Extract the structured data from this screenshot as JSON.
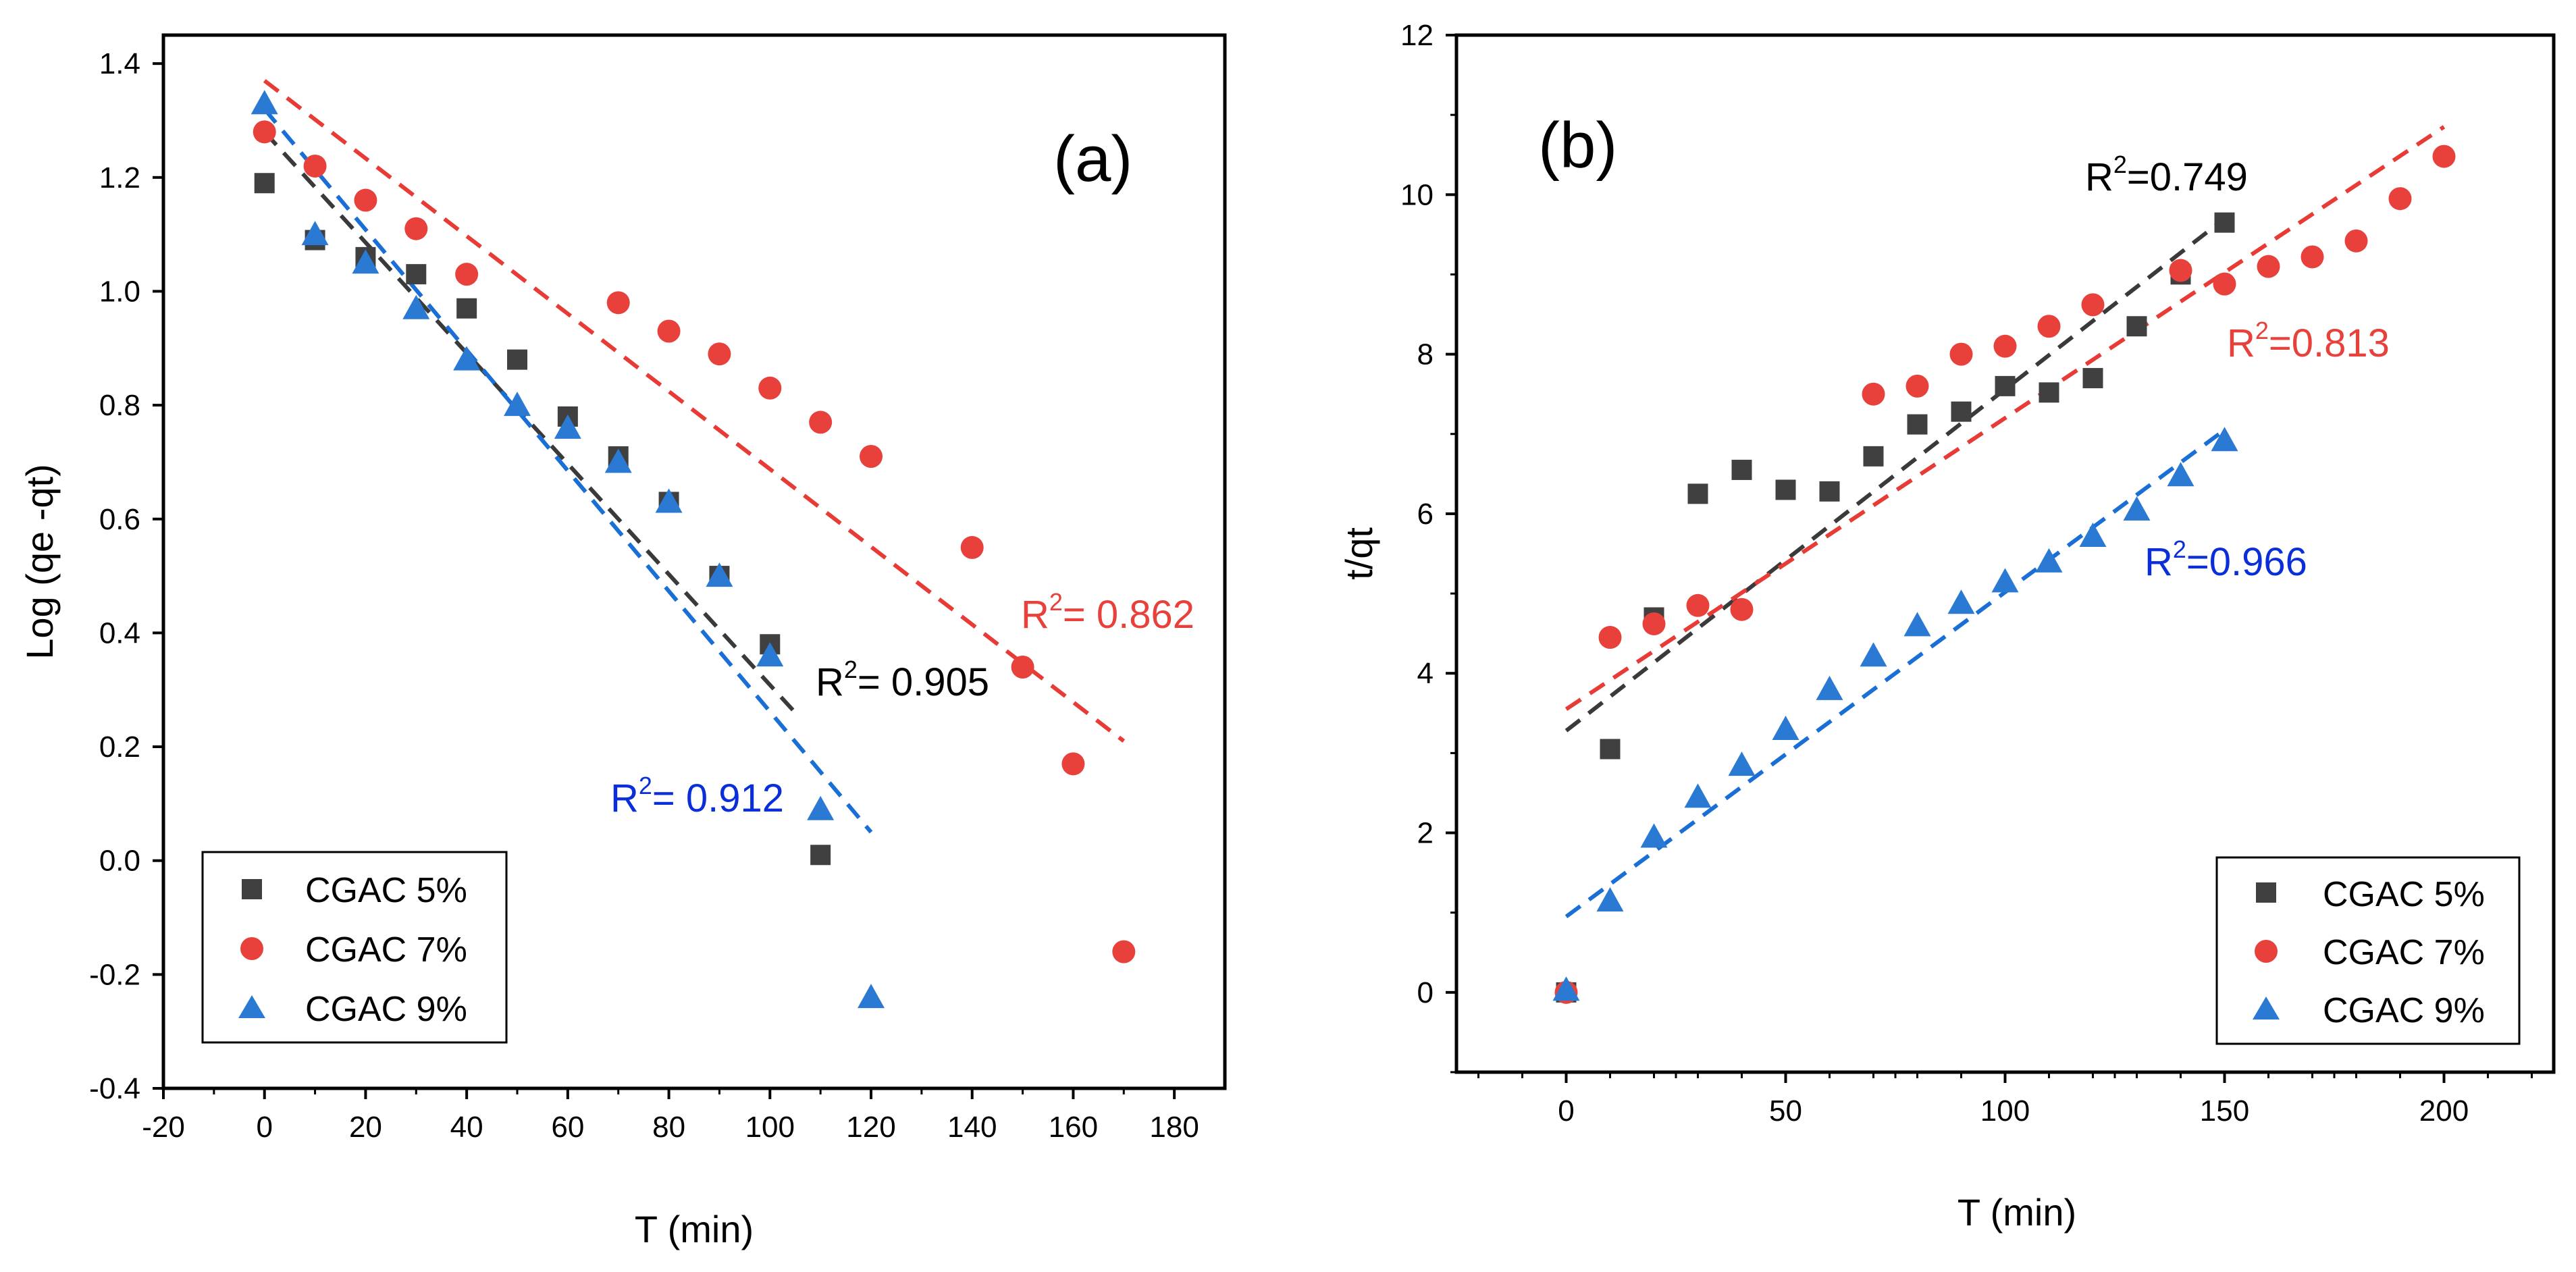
{
  "chart_data": [
    {
      "type": "scatter",
      "panel_label": "(a)",
      "xlabel": "T (min)",
      "ylabel": "Log (qe -qt)",
      "xlim": [
        -20,
        190
      ],
      "ylim": [
        -0.4,
        1.45
      ],
      "xticks": [
        -20,
        0,
        20,
        40,
        60,
        80,
        100,
        120,
        140,
        160,
        180
      ],
      "xtick_labels": [
        "-20",
        "0",
        "20",
        "40",
        "60",
        "80",
        "100",
        "120",
        "140",
        "160",
        "180"
      ],
      "yticks": [
        -0.4,
        -0.2,
        0.0,
        0.2,
        0.4,
        0.6,
        0.8,
        1.0,
        1.2,
        1.4
      ],
      "ytick_labels": [
        "-0.4",
        "-0.2",
        "0.0",
        "0.2",
        "0.4",
        "0.6",
        "0.8",
        "1.0",
        "1.2",
        "1.4"
      ],
      "legend_position": "bottom-left",
      "series": [
        {
          "name": "CGAC 5%",
          "marker": "square",
          "color": "#404040",
          "x": [
            0,
            10,
            20,
            30,
            40,
            50,
            60,
            70,
            80,
            90,
            100,
            110
          ],
          "y": [
            1.19,
            1.09,
            1.06,
            1.03,
            0.97,
            0.88,
            0.78,
            0.71,
            0.63,
            0.5,
            0.38,
            0.01
          ],
          "fit": {
            "x1": 0,
            "y1": 1.28,
            "x2": 105,
            "y2": 0.26,
            "r2_label": "R",
            "r2_value": "= 0.905"
          }
        },
        {
          "name": "CGAC 7%",
          "marker": "circle",
          "color": "#e8403a",
          "x": [
            0,
            10,
            20,
            30,
            40,
            70,
            80,
            90,
            100,
            110,
            120,
            140,
            150,
            160,
            170
          ],
          "y": [
            1.28,
            1.22,
            1.16,
            1.11,
            1.03,
            0.98,
            0.93,
            0.89,
            0.83,
            0.77,
            0.71,
            0.55,
            0.34,
            0.17,
            -0.16
          ],
          "fit": {
            "x1": 0,
            "y1": 1.37,
            "x2": 170,
            "y2": 0.21,
            "r2_label": "R",
            "r2_value": "= 0.862"
          }
        },
        {
          "name": "CGAC 9%",
          "marker": "triangle",
          "color": "#2a7ad4",
          "x": [
            0,
            10,
            20,
            30,
            40,
            50,
            60,
            70,
            80,
            90,
            100,
            110,
            120
          ],
          "y": [
            1.33,
            1.1,
            1.05,
            0.97,
            0.88,
            0.8,
            0.76,
            0.7,
            0.63,
            0.5,
            0.36,
            0.09,
            -0.24
          ],
          "fit": {
            "x1": 0,
            "y1": 1.32,
            "x2": 120,
            "y2": 0.05,
            "r2_label": "R",
            "r2_value": "= 0.912"
          }
        }
      ]
    },
    {
      "type": "scatter",
      "panel_label": "(b)",
      "xlabel": "T (min)",
      "ylabel": "t/qt",
      "xlim": [
        -25,
        225
      ],
      "ylim": [
        -1,
        12
      ],
      "xticks": [
        0,
        50,
        100,
        150,
        200
      ],
      "xtick_labels": [
        "0",
        "50",
        "100",
        "150",
        "200"
      ],
      "yticks": [
        0,
        2,
        4,
        6,
        8,
        10,
        12
      ],
      "ytick_labels": [
        "0",
        "2",
        "4",
        "6",
        "8",
        "10",
        "12"
      ],
      "legend_position": "bottom-right",
      "series": [
        {
          "name": "CGAC 5%",
          "marker": "square",
          "color": "#404040",
          "x": [
            0,
            10,
            20,
            30,
            40,
            50,
            60,
            70,
            80,
            90,
            100,
            110,
            120,
            130,
            140,
            150
          ],
          "y": [
            0,
            3.05,
            4.7,
            6.25,
            6.55,
            6.3,
            6.28,
            6.72,
            7.12,
            7.28,
            7.6,
            7.52,
            7.7,
            8.35,
            9.0,
            9.65
          ],
          "fit": {
            "x1": 0,
            "y1": 3.28,
            "x2": 150,
            "y2": 9.7,
            "r2_label": "R",
            "r2_value": "=0.749"
          }
        },
        {
          "name": "CGAC 7%",
          "marker": "circle",
          "color": "#e8403a",
          "x": [
            0,
            10,
            20,
            30,
            40,
            70,
            80,
            90,
            100,
            110,
            120,
            140,
            150,
            160,
            170,
            180,
            190,
            200
          ],
          "y": [
            0,
            4.45,
            4.62,
            4.85,
            4.8,
            7.5,
            7.6,
            8.0,
            8.1,
            8.35,
            8.62,
            9.05,
            8.88,
            9.1,
            9.22,
            9.42,
            9.95,
            10.48
          ],
          "fit": {
            "x1": 0,
            "y1": 3.55,
            "x2": 200,
            "y2": 10.85,
            "r2_label": "R",
            "r2_value": "=0.813"
          }
        },
        {
          "name": "CGAC 9%",
          "marker": "triangle",
          "color": "#2a7ad4",
          "x": [
            0,
            10,
            20,
            30,
            40,
            50,
            60,
            70,
            80,
            90,
            100,
            110,
            120,
            130,
            140,
            150
          ],
          "y": [
            0.03,
            1.15,
            1.95,
            2.45,
            2.85,
            3.3,
            3.8,
            4.22,
            4.6,
            4.88,
            5.15,
            5.4,
            5.72,
            6.05,
            6.48,
            6.92
          ],
          "fit": {
            "x1": 0,
            "y1": 0.95,
            "x2": 150,
            "y2": 7.05,
            "r2_label": "R",
            "r2_value": "=0.966"
          }
        }
      ]
    }
  ]
}
